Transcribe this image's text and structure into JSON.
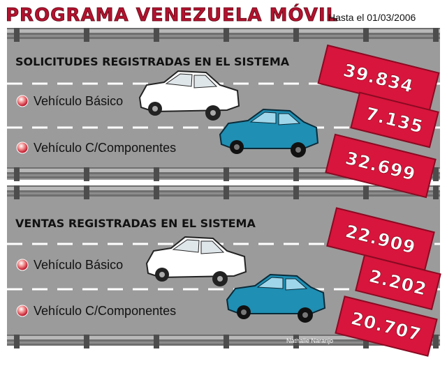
{
  "header": {
    "title": "PROGRAMA VENEZUELA MÓVIL",
    "date": "Hasta el 01/03/2006"
  },
  "sections": [
    {
      "heading": "SOLICITUDES REGISTRADAS EN EL SISTEMA",
      "total": "39.834",
      "items": [
        {
          "label": "Vehículo Básico",
          "value": "7.135"
        },
        {
          "label": "Vehículo C/Componentes",
          "value": "32.699"
        }
      ]
    },
    {
      "heading": "VENTAS REGISTRADAS EN EL SISTEMA",
      "total": "22.909",
      "items": [
        {
          "label": "Vehículo Básico",
          "value": "2.202"
        },
        {
          "label": "Vehículo C/Componentes",
          "value": "20.707"
        }
      ]
    }
  ],
  "credit": "Nathalie Naranjo"
}
